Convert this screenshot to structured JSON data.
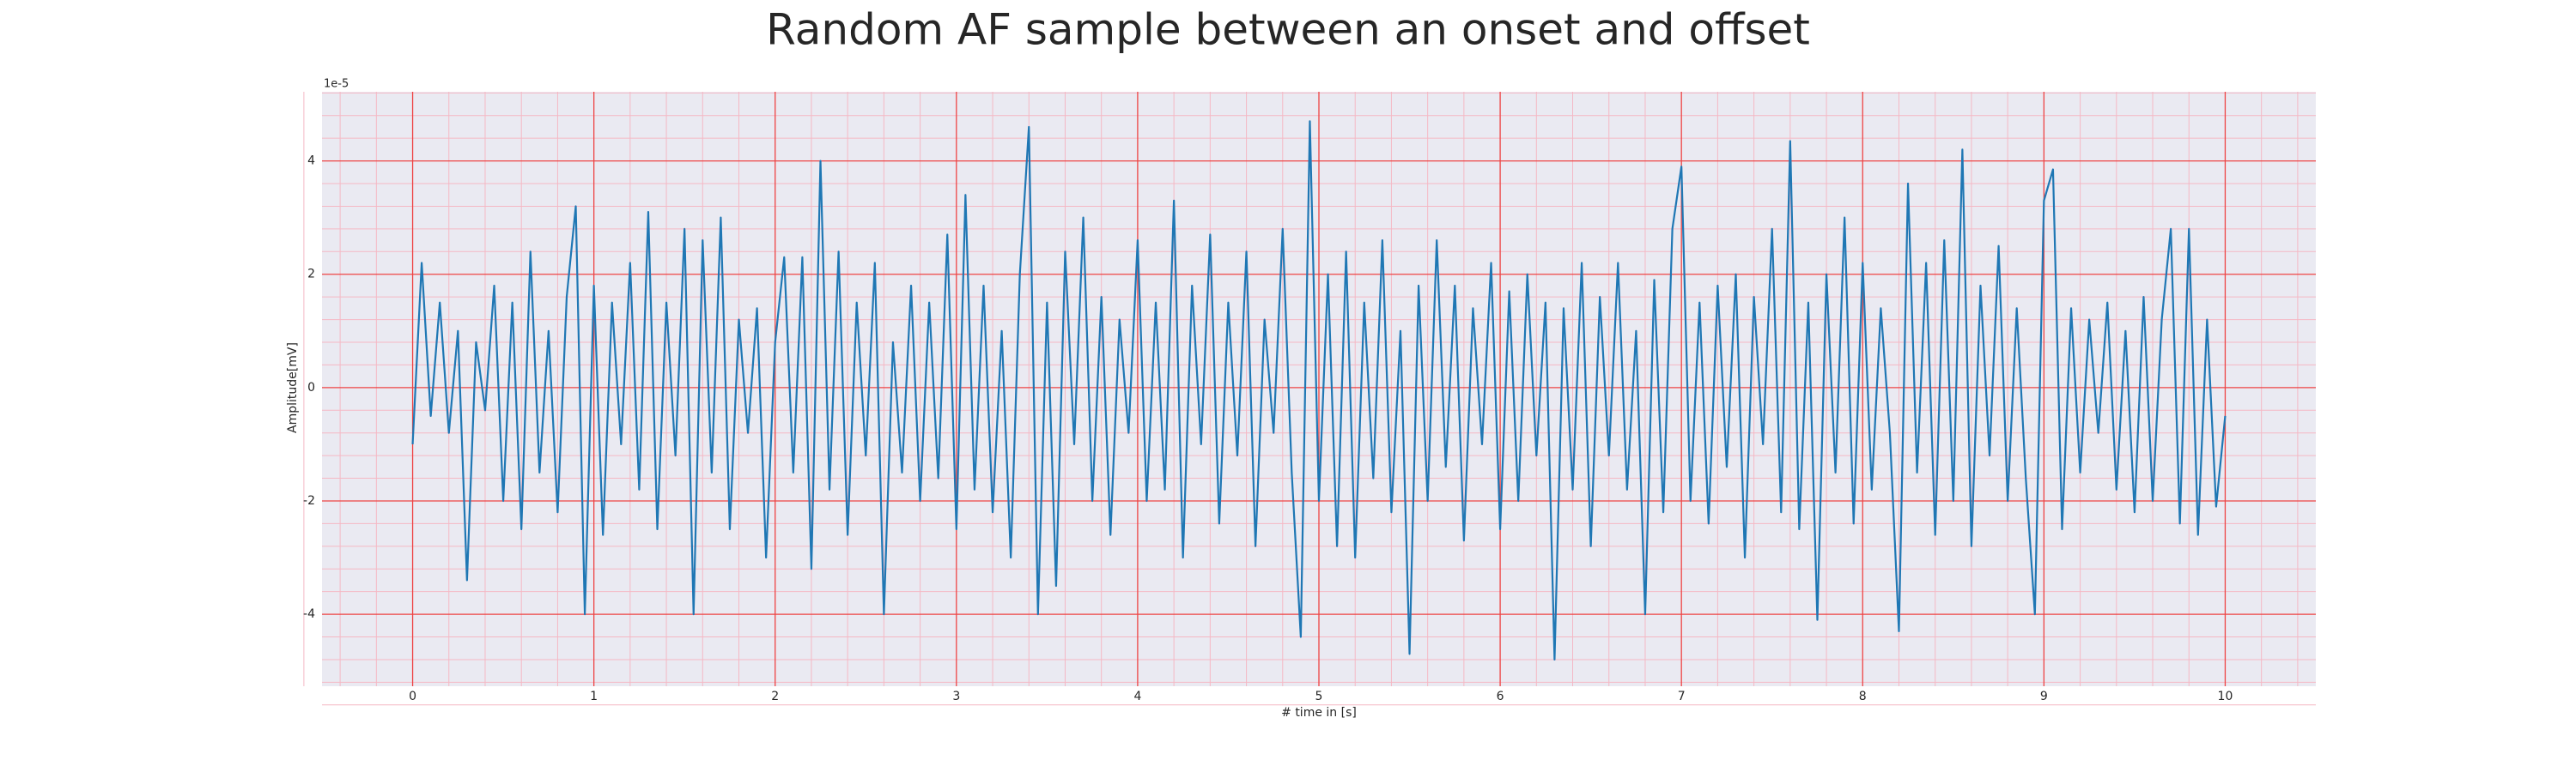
{
  "chart_data": {
    "type": "line",
    "title": "Random AF sample between an onset and offset",
    "xlabel": "# time in [s]",
    "ylabel": "Amplitude[mV]",
    "y_offset_label": "1e-5",
    "color": "#1f77b4",
    "grid": true,
    "minor_grid": true,
    "xlim": [
      -0.5,
      10.5
    ],
    "ylim": [
      -5.27,
      5.22
    ],
    "xticks": [
      0,
      1,
      2,
      3,
      4,
      5,
      6,
      7,
      8,
      9,
      10
    ],
    "yticks": [
      -4,
      -2,
      0,
      2,
      4
    ],
    "x": [
      0,
      0.05,
      0.1,
      0.15,
      0.2,
      0.25,
      0.3,
      0.35,
      0.4,
      0.45,
      0.5,
      0.55,
      0.6,
      0.65,
      0.7,
      0.75,
      0.8,
      0.85,
      0.9,
      0.95,
      1,
      1.05,
      1.1,
      1.15,
      1.2,
      1.25,
      1.3,
      1.35,
      1.4,
      1.45,
      1.5,
      1.55,
      1.6,
      1.65,
      1.7,
      1.75,
      1.8,
      1.85,
      1.9,
      1.95,
      2,
      2.05,
      2.1,
      2.15,
      2.2,
      2.25,
      2.3,
      2.35,
      2.4,
      2.45,
      2.5,
      2.55,
      2.6,
      2.65,
      2.7,
      2.75,
      2.8,
      2.85,
      2.9,
      2.95,
      3,
      3.05,
      3.1,
      3.15,
      3.2,
      3.25,
      3.3,
      3.35,
      3.4,
      3.45,
      3.5,
      3.55,
      3.6,
      3.65,
      3.7,
      3.75,
      3.8,
      3.85,
      3.9,
      3.95,
      4,
      4.05,
      4.1,
      4.15,
      4.2,
      4.25,
      4.3,
      4.35,
      4.4,
      4.45,
      4.5,
      4.55,
      4.6,
      4.65,
      4.7,
      4.75,
      4.8,
      4.85,
      4.9,
      4.95,
      5,
      5.05,
      5.1,
      5.15,
      5.2,
      5.25,
      5.3,
      5.35,
      5.4,
      5.45,
      5.5,
      5.55,
      5.6,
      5.65,
      5.7,
      5.75,
      5.8,
      5.85,
      5.9,
      5.95,
      6,
      6.05,
      6.1,
      6.15,
      6.2,
      6.25,
      6.3,
      6.35,
      6.4,
      6.45,
      6.5,
      6.55,
      6.6,
      6.65,
      6.7,
      6.75,
      6.8,
      6.85,
      6.9,
      6.95,
      7,
      7.05,
      7.1,
      7.15,
      7.2,
      7.25,
      7.3,
      7.35,
      7.4,
      7.45,
      7.5,
      7.55,
      7.6,
      7.65,
      7.7,
      7.75,
      7.8,
      7.85,
      7.9,
      7.95,
      8,
      8.05,
      8.1,
      8.15,
      8.2,
      8.25,
      8.3,
      8.35,
      8.4,
      8.45,
      8.5,
      8.55,
      8.6,
      8.65,
      8.7,
      8.75,
      8.8,
      8.85,
      8.9,
      8.95,
      9,
      9.05,
      9.1,
      9.15,
      9.2,
      9.25,
      9.3,
      9.35,
      9.4,
      9.45,
      9.5,
      9.55,
      9.6,
      9.65,
      9.7,
      9.75,
      9.8,
      9.85,
      9.9,
      9.95,
      10
    ],
    "values": [
      -1.0,
      2.2,
      -0.5,
      1.5,
      -0.8,
      1.0,
      -3.4,
      0.8,
      -0.4,
      1.8,
      -2.0,
      1.5,
      -2.5,
      2.4,
      -1.5,
      1.0,
      -2.2,
      1.6,
      3.2,
      -4.0,
      1.8,
      -2.6,
      1.5,
      -1.0,
      2.2,
      -1.8,
      3.1,
      -2.5,
      1.5,
      -1.2,
      2.8,
      -4.0,
      2.6,
      -1.5,
      3.0,
      -2.5,
      1.2,
      -0.8,
      1.4,
      -3.0,
      0.8,
      2.3,
      -1.5,
      2.3,
      -3.2,
      4.0,
      -1.8,
      2.4,
      -2.6,
      1.5,
      -1.2,
      2.2,
      -4.0,
      0.8,
      -1.5,
      1.8,
      -2.0,
      1.5,
      -1.6,
      2.7,
      -2.5,
      3.4,
      -1.8,
      1.8,
      -2.2,
      1.0,
      -3.0,
      2.0,
      4.6,
      -4.0,
      1.5,
      -3.5,
      2.4,
      -1.0,
      3.0,
      -2.0,
      1.6,
      -2.6,
      1.2,
      -0.8,
      2.6,
      -2.0,
      1.5,
      -1.8,
      3.3,
      -3.0,
      1.8,
      -1.0,
      2.7,
      -2.4,
      1.5,
      -1.2,
      2.4,
      -2.8,
      1.2,
      -0.8,
      2.8,
      -1.5,
      -4.4,
      4.7,
      -2.0,
      2.0,
      -2.8,
      2.4,
      -3.0,
      1.5,
      -1.6,
      2.6,
      -2.2,
      1.0,
      -4.7,
      1.8,
      -2.0,
      2.6,
      -1.4,
      1.8,
      -2.7,
      1.4,
      -1.0,
      2.2,
      -2.5,
      1.7,
      -2.0,
      2.0,
      -1.2,
      1.5,
      -4.8,
      1.4,
      -1.8,
      2.2,
      -2.8,
      1.6,
      -1.2,
      2.2,
      -1.8,
      1.0,
      -4.0,
      1.9,
      -2.2,
      2.8,
      3.9,
      -2.0,
      1.5,
      -2.4,
      1.8,
      -1.4,
      2.0,
      -3.0,
      1.6,
      -1.0,
      2.8,
      -2.2,
      4.35,
      -2.5,
      1.5,
      -4.1,
      2.0,
      -1.5,
      3.0,
      -2.4,
      2.2,
      -1.8,
      1.4,
      -0.8,
      -4.3,
      3.6,
      -1.5,
      2.2,
      -2.6,
      2.6,
      -2.0,
      4.2,
      -2.8,
      1.8,
      -1.2,
      2.5,
      -2.0,
      1.4,
      -1.6,
      -4.0,
      3.3,
      3.85,
      -2.5,
      1.4,
      -1.5,
      1.2,
      -0.8,
      1.5,
      -1.8,
      1.0,
      -2.2,
      1.6,
      -2.0,
      1.2,
      2.8,
      -2.4,
      2.8,
      -2.6,
      1.2,
      -2.1,
      -0.5
    ]
  }
}
